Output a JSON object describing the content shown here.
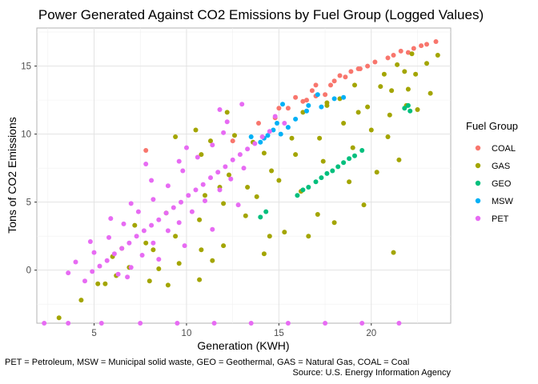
{
  "chart_data": {
    "type": "scatter",
    "title": "Power Generated Against CO2 Emissions by Fuel Group (Logged Values)",
    "xlabel": "Generation (KWH)",
    "ylabel": "Tons of CO2 Emissions",
    "xlim": [
      1.9,
      24.3
    ],
    "ylim": [
      -3.9,
      17.8
    ],
    "xticks": [
      5,
      10,
      15,
      20
    ],
    "yticks": [
      0,
      5,
      10,
      15
    ],
    "grid": true,
    "legend": {
      "title": "Fuel Group",
      "placement": "right",
      "entries": [
        "COAL",
        "GAS",
        "GEO",
        "MSW",
        "PET"
      ]
    },
    "caption_left": "PET = Petroleum, MSW = Municipal solid waste, GEO = Geothermal, GAS = Natural Gas, COAL = Coal",
    "caption_right": "Source: U.S. Energy Information Agency",
    "series": [
      {
        "name": "COAL",
        "color": "#F8766D",
        "points": [
          [
            7.8,
            8.8
          ],
          [
            12.5,
            9.5
          ],
          [
            13.9,
            10.8
          ],
          [
            14.8,
            11.2
          ],
          [
            15.5,
            11.9
          ],
          [
            16.3,
            12.4
          ],
          [
            17.0,
            12.8
          ],
          [
            17.8,
            13.6
          ],
          [
            18.6,
            14.2
          ],
          [
            19.4,
            14.8
          ],
          [
            20.2,
            15.3
          ],
          [
            20.9,
            15.6
          ],
          [
            21.6,
            16.1
          ],
          [
            22.3,
            16.3
          ],
          [
            23.0,
            16.6
          ],
          [
            23.5,
            16.8
          ],
          [
            17.0,
            13.6
          ],
          [
            18.3,
            14.3
          ],
          [
            19.8,
            15.0
          ],
          [
            21.2,
            15.8
          ],
          [
            15.9,
            12.7
          ],
          [
            16.8,
            13.2
          ],
          [
            18.9,
            14.6
          ],
          [
            22.7,
            16.5
          ],
          [
            15.0,
            11.9
          ],
          [
            16.5,
            12.5
          ],
          [
            19.3,
            14.8
          ],
          [
            17.5,
            12.9
          ],
          [
            22.0,
            16.0
          ],
          [
            18.0,
            13.9
          ]
        ]
      },
      {
        "name": "GAS",
        "color": "#A3A500",
        "points": [
          [
            3.1,
            -3.5
          ],
          [
            4.3,
            -2.2
          ],
          [
            5.6,
            -1.0
          ],
          [
            6.9,
            0.2
          ],
          [
            8.2,
            1.5
          ],
          [
            9.4,
            2.5
          ],
          [
            10.7,
            3.7
          ],
          [
            12.0,
            4.9
          ],
          [
            13.3,
            6.1
          ],
          [
            14.6,
            7.3
          ],
          [
            15.9,
            8.5
          ],
          [
            17.2,
            9.7
          ],
          [
            18.5,
            10.8
          ],
          [
            19.8,
            12.0
          ],
          [
            21.1,
            13.2
          ],
          [
            22.4,
            14.4
          ],
          [
            23.6,
            15.8
          ],
          [
            20.5,
            13.5
          ],
          [
            21.8,
            14.6
          ],
          [
            23.0,
            15.2
          ],
          [
            19.0,
            9.0
          ],
          [
            20.0,
            10.3
          ],
          [
            21.0,
            11.4
          ],
          [
            21.9,
            12.1
          ],
          [
            22.5,
            11.8
          ],
          [
            23.2,
            13.0
          ],
          [
            20.3,
            7.2
          ],
          [
            21.5,
            8.1
          ],
          [
            18.8,
            6.5
          ],
          [
            19.6,
            4.8
          ],
          [
            18.0,
            3.5
          ],
          [
            17.1,
            4.1
          ],
          [
            16.6,
            2.5
          ],
          [
            15.3,
            2.8
          ],
          [
            14.2,
            1.2
          ],
          [
            14.5,
            2.5
          ],
          [
            13.2,
            4.0
          ],
          [
            12.0,
            1.8
          ],
          [
            10.8,
            1.5
          ],
          [
            9.6,
            0.5
          ],
          [
            8.0,
            -0.8
          ],
          [
            6.2,
            -0.4
          ],
          [
            5.2,
            -1.0
          ],
          [
            11.8,
            6.1
          ],
          [
            12.3,
            7.0
          ],
          [
            10.5,
            10.3
          ],
          [
            9.4,
            9.8
          ],
          [
            10.8,
            8.5
          ],
          [
            11.3,
            9.5
          ],
          [
            12.6,
            9.9
          ],
          [
            13.6,
            9.4
          ],
          [
            14.2,
            8.6
          ],
          [
            15.7,
            9.7
          ],
          [
            16.3,
            11.6
          ],
          [
            17.6,
            12.1
          ],
          [
            18.3,
            12.6
          ],
          [
            19.1,
            13.6
          ],
          [
            20.7,
            14.4
          ],
          [
            21.4,
            15.1
          ],
          [
            22.2,
            15.9
          ],
          [
            7.8,
            2.0
          ],
          [
            8.9,
            4.2
          ],
          [
            7.2,
            3.3
          ],
          [
            6.5,
            1.6
          ],
          [
            12.2,
            11.6
          ],
          [
            17.6,
            12.3
          ],
          [
            21.2,
            1.3
          ],
          [
            11.4,
            0.7
          ],
          [
            10.7,
            -0.7
          ],
          [
            9.0,
            -1.1
          ],
          [
            17.4,
            8.0
          ],
          [
            13.8,
            5.4
          ],
          [
            19.3,
            11.6
          ],
          [
            22.0,
            13.3
          ],
          [
            16.2,
            5.8
          ],
          [
            20.9,
            9.8
          ],
          [
            15.0,
            6.6
          ],
          [
            6.0,
            1.0
          ],
          [
            8.5,
            0.1
          ],
          [
            11.0,
            5.5
          ]
        ]
      },
      {
        "name": "GEO",
        "color": "#00BF7D",
        "points": [
          [
            14.3,
            4.3
          ],
          [
            14.0,
            3.9
          ],
          [
            16.0,
            5.5
          ],
          [
            16.3,
            5.9
          ],
          [
            16.6,
            6.1
          ],
          [
            17.0,
            6.5
          ],
          [
            17.3,
            6.8
          ],
          [
            17.6,
            7.1
          ],
          [
            17.9,
            7.3
          ],
          [
            18.2,
            7.6
          ],
          [
            18.5,
            7.9
          ],
          [
            18.8,
            8.2
          ],
          [
            19.1,
            8.4
          ],
          [
            19.5,
            8.8
          ],
          [
            22.1,
            11.7
          ],
          [
            22.0,
            12.1
          ],
          [
            21.8,
            11.9
          ]
        ]
      },
      {
        "name": "MSW",
        "color": "#00B0F6",
        "points": [
          [
            14.0,
            9.4
          ],
          [
            14.4,
            9.9
          ],
          [
            14.7,
            10.3
          ],
          [
            15.1,
            10.0
          ],
          [
            15.5,
            10.5
          ],
          [
            14.2,
            9.7
          ],
          [
            15.9,
            11.1
          ],
          [
            16.5,
            11.7
          ],
          [
            17.3,
            12.0
          ],
          [
            18.0,
            12.6
          ],
          [
            18.5,
            12.7
          ],
          [
            15.2,
            12.2
          ],
          [
            16.6,
            12.1
          ],
          [
            17.1,
            12.9
          ],
          [
            13.5,
            9.8
          ],
          [
            14.9,
            10.8
          ]
        ]
      },
      {
        "name": "PET",
        "color": "#E76BF3",
        "points": [
          [
            2.3,
            -3.9
          ],
          [
            3.6,
            -3.9
          ],
          [
            5.4,
            -3.9
          ],
          [
            7.5,
            -3.9
          ],
          [
            9.5,
            -3.9
          ],
          [
            11.5,
            -3.9
          ],
          [
            13.5,
            -3.9
          ],
          [
            15.5,
            -3.9
          ],
          [
            17.5,
            -3.9
          ],
          [
            19.5,
            -3.9
          ],
          [
            21.5,
            -3.9
          ],
          [
            4.5,
            -0.8
          ],
          [
            4.9,
            -0.1
          ],
          [
            5.3,
            0.3
          ],
          [
            5.7,
            0.7
          ],
          [
            6.1,
            1.2
          ],
          [
            6.5,
            1.6
          ],
          [
            6.9,
            2.0
          ],
          [
            7.3,
            2.5
          ],
          [
            7.7,
            2.9
          ],
          [
            8.1,
            3.3
          ],
          [
            8.5,
            3.7
          ],
          [
            8.9,
            4.2
          ],
          [
            9.3,
            4.6
          ],
          [
            9.7,
            5.0
          ],
          [
            10.1,
            5.5
          ],
          [
            10.5,
            5.9
          ],
          [
            10.9,
            6.3
          ],
          [
            11.3,
            6.8
          ],
          [
            11.7,
            7.2
          ],
          [
            12.1,
            7.6
          ],
          [
            12.5,
            8.1
          ],
          [
            12.9,
            8.5
          ],
          [
            13.3,
            8.9
          ],
          [
            13.7,
            9.3
          ],
          [
            14.1,
            9.8
          ],
          [
            14.5,
            10.2
          ],
          [
            6.3,
            -0.3
          ],
          [
            7.0,
            0.2
          ],
          [
            7.6,
            1.1
          ],
          [
            8.2,
            2.0
          ],
          [
            9.0,
            2.9
          ],
          [
            9.6,
            3.5
          ],
          [
            10.3,
            4.3
          ],
          [
            11.0,
            5.1
          ],
          [
            11.8,
            5.9
          ],
          [
            12.4,
            6.7
          ],
          [
            13.1,
            7.5
          ],
          [
            5.0,
            1.3
          ],
          [
            5.8,
            2.4
          ],
          [
            6.6,
            3.4
          ],
          [
            7.4,
            4.3
          ],
          [
            8.2,
            5.2
          ],
          [
            9.0,
            6.2
          ],
          [
            9.8,
            7.3
          ],
          [
            10.6,
            8.3
          ],
          [
            11.4,
            9.2
          ],
          [
            12.0,
            10.1
          ],
          [
            7.0,
            4.9
          ],
          [
            8.1,
            6.6
          ],
          [
            9.6,
            8.0
          ],
          [
            4.0,
            0.6
          ],
          [
            3.6,
            -0.2
          ],
          [
            4.8,
            2.1
          ],
          [
            5.9,
            3.8
          ],
          [
            9.9,
            1.8
          ],
          [
            11.4,
            3.0
          ],
          [
            12.8,
            4.8
          ],
          [
            12.2,
            10.9
          ],
          [
            13.0,
            12.2
          ],
          [
            11.8,
            11.8
          ],
          [
            14.8,
            11.3
          ],
          [
            15.3,
            10.8
          ],
          [
            8.5,
            0.8
          ],
          [
            6.8,
            -0.5
          ],
          [
            10.0,
            9.0
          ],
          [
            7.8,
            7.8
          ]
        ]
      }
    ]
  }
}
